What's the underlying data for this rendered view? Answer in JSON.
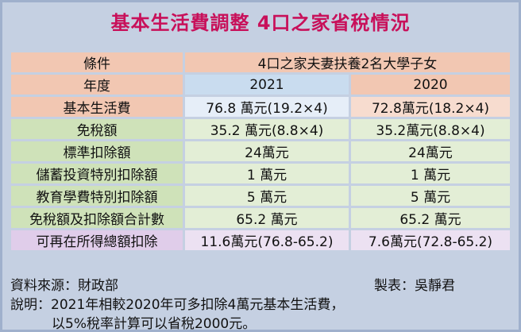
{
  "title": "基本生活費調整 4口之家省稅情況",
  "table": {
    "header": [
      "條件",
      "4口之家夫妻扶養2名大學子女"
    ],
    "years": [
      "年度",
      "2021",
      "2020"
    ],
    "rows": [
      [
        "基本生活費",
        "76.8 萬元(19.2×4)",
        "72.8萬元(18.2×4)"
      ],
      [
        "免稅額",
        "35.2 萬元(8.8×4)",
        "35.2萬元(8.8×4)"
      ],
      [
        "標準扣除額",
        "24萬元",
        "24萬元"
      ],
      [
        "儲蓄投資特別扣除額",
        "1 萬元",
        "1 萬元"
      ],
      [
        "教育學費特別扣除額",
        "5 萬元",
        "5 萬元"
      ],
      [
        "免稅額及扣除額合計數",
        "65.2 萬元",
        "65.2 萬元"
      ],
      [
        "可再在所得總額扣除",
        "11.6萬元(76.8-65.2)",
        "7.6萬元(72.8-65.2)"
      ]
    ]
  },
  "footer": {
    "source": "資料來源：財政部",
    "author": "製表：吳靜君",
    "note": [
      "說明：2021年相較2020年可多扣除4萬元基本生活費，",
      "以5%稅率計算可以省稅2000元。"
    ]
  }
}
